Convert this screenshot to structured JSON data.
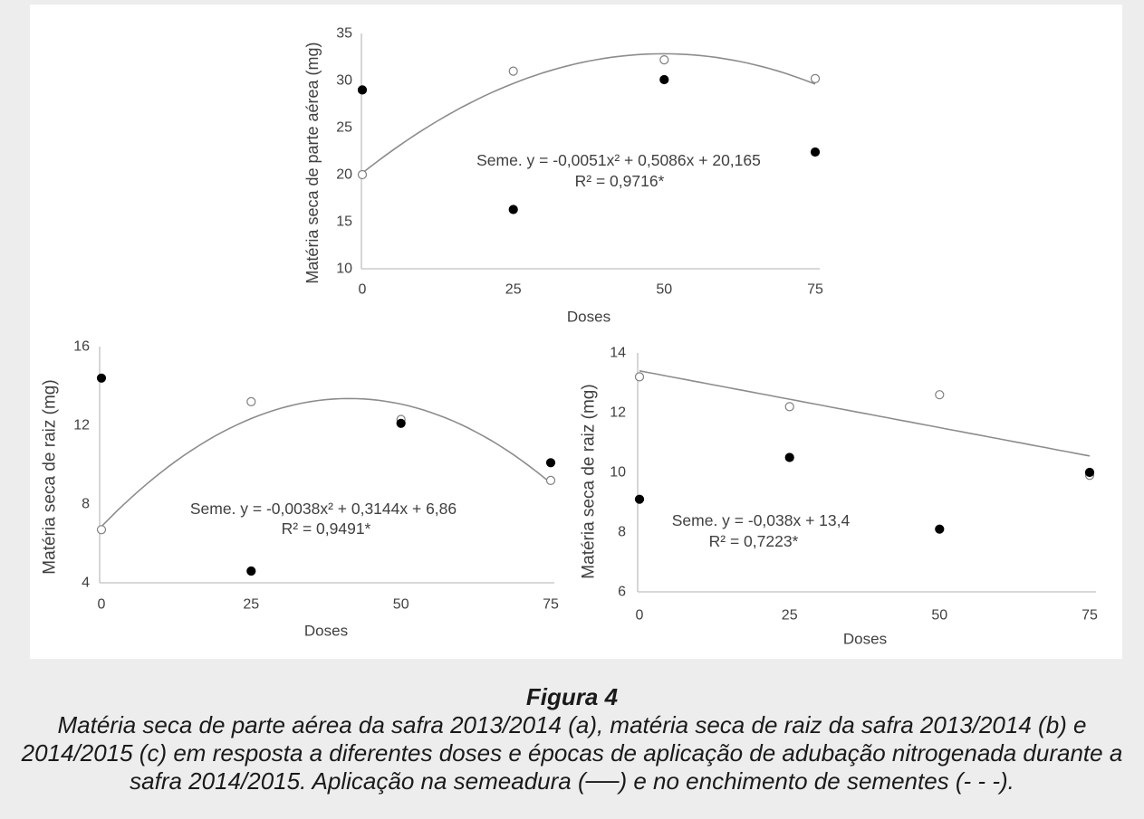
{
  "colors": {
    "page_background": "#eeeded",
    "panel_background": "#ffffff",
    "axis": "#c0c0c0",
    "trendline": "#8c8c8c",
    "chart_text": "#404040",
    "caption_text": "#1a1a1a"
  },
  "chart_data": [
    {
      "type": "scatter",
      "xlabel": "Doses",
      "ylabel": "Matéria seca de parte aérea (mg)",
      "xlim": [
        0,
        75
      ],
      "ylim": [
        10,
        35
      ],
      "xticks": [
        0,
        25,
        50,
        75
      ],
      "yticks": [
        10,
        15,
        20,
        25,
        30,
        35
      ],
      "grid": false,
      "x": [
        0,
        25,
        50,
        75
      ],
      "series": [
        {
          "color": "#7f7f7f",
          "fill": "#ffffff",
          "y": [
            20.0,
            31.0,
            32.2,
            30.2
          ]
        },
        {
          "color": "#000000",
          "fill": "#000000",
          "y": [
            29.0,
            16.3,
            30.1,
            22.4
          ]
        }
      ],
      "trendline": {
        "series": 0,
        "coefficients": [
          -0.0051,
          0.5086,
          20.165
        ],
        "equation": "Seme. y = -0,0051x² + 0,5086x + 20,165",
        "r_squared": "R² = 0,9716*"
      }
    },
    {
      "type": "scatter",
      "xlabel": "Doses",
      "ylabel": "Matéria seca de raiz (mg)",
      "xlim": [
        0,
        75
      ],
      "ylim": [
        4,
        16
      ],
      "xticks": [
        0,
        25,
        50,
        75
      ],
      "yticks": [
        4,
        8,
        12,
        16
      ],
      "grid": false,
      "x": [
        0,
        25,
        50,
        75
      ],
      "series": [
        {
          "color": "#7f7f7f",
          "fill": "#ffffff",
          "y": [
            6.7,
            13.2,
            12.3,
            9.2
          ]
        },
        {
          "color": "#000000",
          "fill": "#000000",
          "y": [
            14.4,
            4.6,
            12.1,
            10.1
          ]
        }
      ],
      "trendline": {
        "series": 0,
        "coefficients": [
          -0.0038,
          0.3144,
          6.86
        ],
        "equation": "Seme. y = -0,0038x² + 0,3144x + 6,86",
        "r_squared": "R² = 0,9491*"
      }
    },
    {
      "type": "scatter",
      "xlabel": "Doses",
      "ylabel": "Matéria seca de raiz (mg)",
      "xlim": [
        0,
        75
      ],
      "ylim": [
        6,
        14
      ],
      "xticks": [
        0,
        25,
        50,
        75
      ],
      "yticks": [
        6,
        8,
        10,
        12,
        14
      ],
      "grid": false,
      "x": [
        0,
        25,
        50,
        75
      ],
      "series": [
        {
          "color": "#7f7f7f",
          "fill": "#ffffff",
          "y": [
            13.2,
            12.2,
            12.6,
            9.9
          ]
        },
        {
          "color": "#000000",
          "fill": "#000000",
          "y": [
            9.1,
            10.5,
            8.1,
            10.0
          ]
        }
      ],
      "trendline": {
        "series": 0,
        "coefficients": [
          -0.038,
          13.4
        ],
        "equation": "Seme. y = -0,038x + 13,4",
        "r_squared": "R² = 0,7223*"
      }
    }
  ],
  "caption": {
    "title": "Figura 4",
    "lines": [
      "Matéria seca de parte aérea da safra 2013/2014 (a), matéria seca de raiz da safra 2013/2014 (b) e",
      "2014/2015 (c) em resposta a diferentes doses e épocas de aplicação de adubação nitrogenada durante a",
      "safra 2014/2015. Aplicação na semeadura (──) e no enchimento de sementes (- - -)."
    ]
  }
}
